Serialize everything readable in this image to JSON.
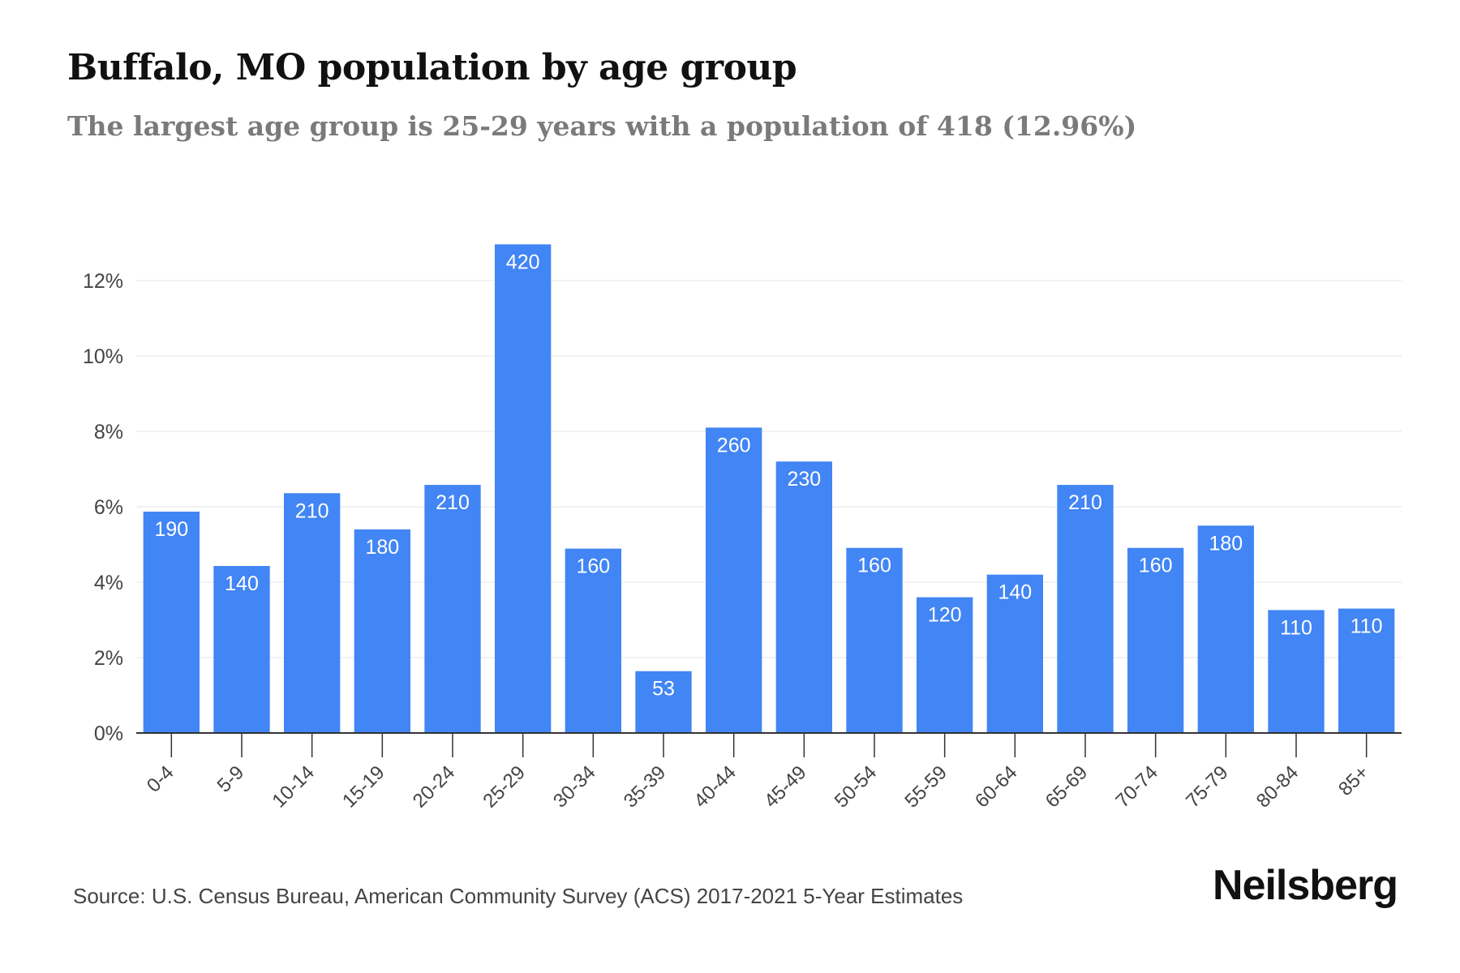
{
  "title": "Buffalo, MO population by age group",
  "subtitle": "The largest age group is 25-29 years with a population of 418 (12.96%)",
  "source": "Source: U.S. Census Bureau, American Community Survey (ACS) 2017-2021 5-Year Estimates",
  "brand": "Neilsberg",
  "colors": {
    "bar": "#4285f4",
    "bar_label": "#ffffff",
    "grid": "#eeeeee",
    "axis": "#333333",
    "tick_text": "#444444"
  },
  "chart_data": {
    "type": "bar",
    "title": "",
    "xlabel": "",
    "ylabel": "",
    "ylim": [
      0,
      12
    ],
    "yticks": [
      0,
      2,
      4,
      6,
      8,
      10,
      12
    ],
    "ytick_labels": [
      "0%",
      "2%",
      "4%",
      "6%",
      "8%",
      "10%",
      "12%"
    ],
    "categories": [
      "0-4",
      "5-9",
      "10-14",
      "15-19",
      "20-24",
      "25-29",
      "30-34",
      "35-39",
      "40-44",
      "45-49",
      "50-54",
      "55-59",
      "60-64",
      "65-69",
      "70-74",
      "75-79",
      "80-84",
      "85+"
    ],
    "values": [
      5.87,
      4.43,
      6.36,
      5.4,
      6.58,
      12.96,
      4.89,
      1.64,
      8.1,
      7.2,
      4.91,
      3.6,
      4.2,
      6.58,
      4.91,
      5.5,
      3.26,
      3.3
    ],
    "data_labels": [
      "190",
      "140",
      "210",
      "180",
      "210",
      "420",
      "160",
      "53",
      "260",
      "230",
      "160",
      "120",
      "140",
      "210",
      "160",
      "180",
      "110",
      "110"
    ],
    "grid": true,
    "legend": "none"
  }
}
